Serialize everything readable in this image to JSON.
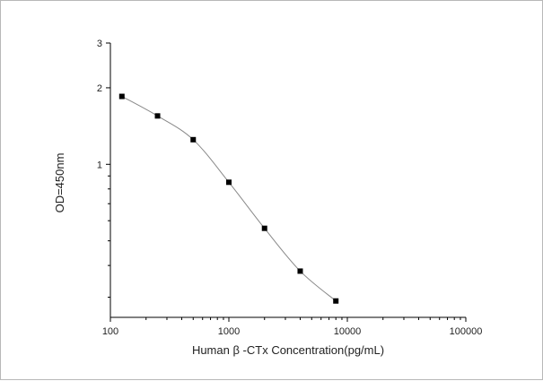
{
  "chart_data": {
    "type": "scatter",
    "title": "",
    "xlabel": "Human β -CTx Concentration(pg/mL)",
    "ylabel": "OD=450nm",
    "x_scale": "log",
    "y_scale": "log",
    "xlim": [
      100,
      100000
    ],
    "ylim": [
      0.25,
      3
    ],
    "x_ticks": [
      {
        "value": 100,
        "label": "100"
      },
      {
        "value": 1000,
        "label": "1000"
      },
      {
        "value": 10000,
        "label": "10000"
      },
      {
        "value": 100000,
        "label": "100000"
      }
    ],
    "y_ticks": [
      {
        "value": 1,
        "label": "1"
      },
      {
        "value": 2,
        "label": "2"
      },
      {
        "value": 3,
        "label": "3"
      }
    ],
    "grid": false,
    "legend": "none",
    "series": [
      {
        "x": [
          125,
          250,
          500,
          1000,
          2000,
          4000,
          8000
        ],
        "y": [
          1.85,
          1.55,
          1.25,
          0.85,
          0.56,
          0.38,
          0.29
        ]
      }
    ],
    "colors": {
      "marker": "#000000",
      "line": "#888888",
      "axis": "#000000"
    }
  }
}
